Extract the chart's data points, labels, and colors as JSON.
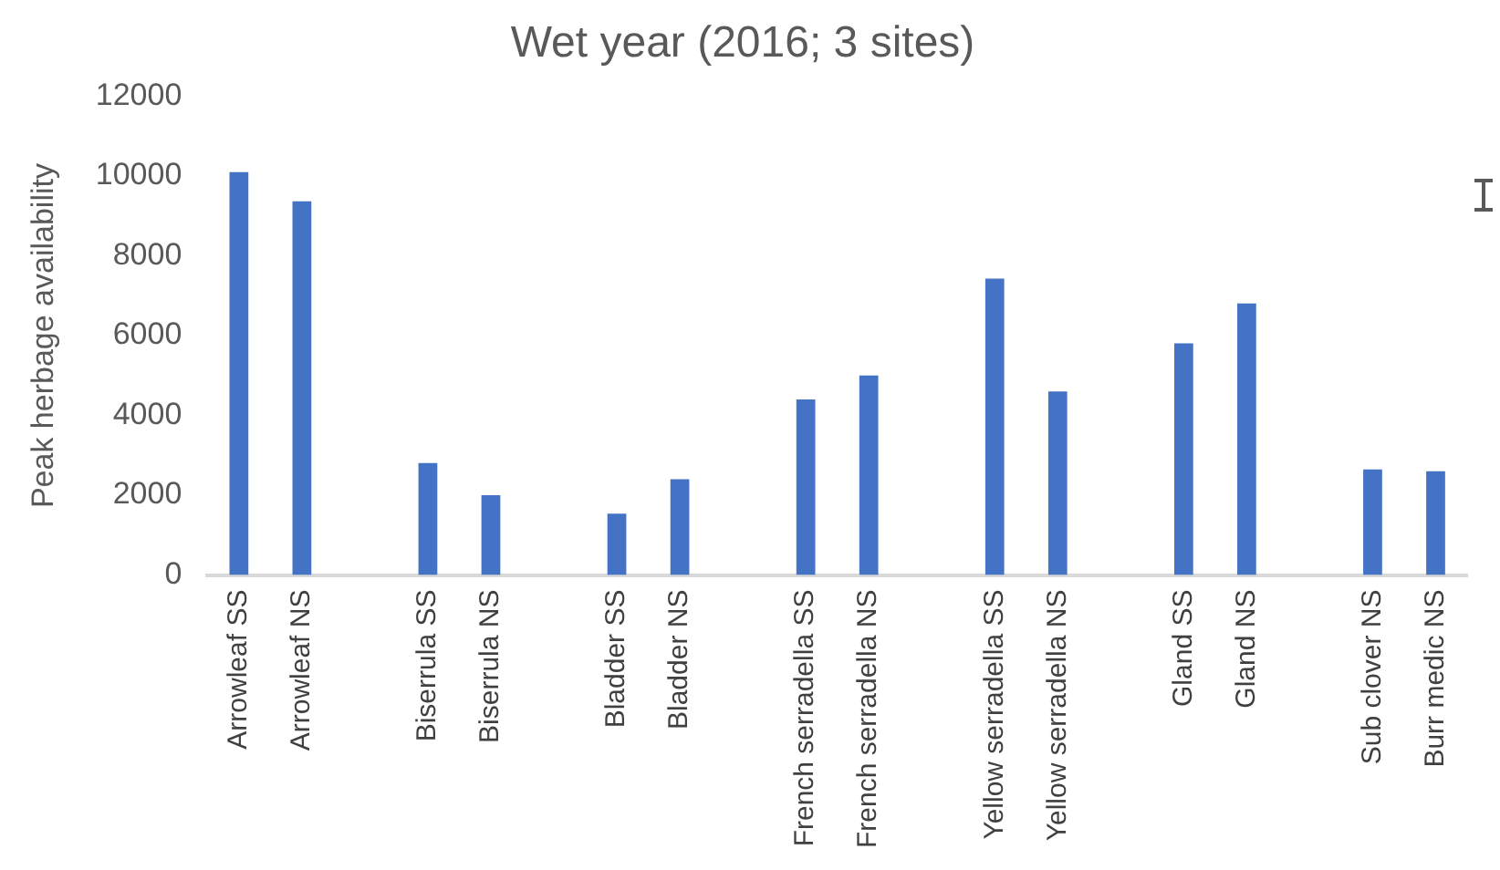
{
  "chart_data": {
    "type": "bar",
    "title": "Wet year (2016; 3 sites)",
    "ylabel": "Peak herbage availability",
    "categories": [
      "Arrowleaf SS",
      "Arrowleaf NS",
      null,
      "Biserrula SS",
      "Biserrula NS",
      null,
      "Bladder SS",
      "Bladder NS",
      null,
      "French serradella SS",
      "French serradella NS",
      null,
      "Yellow serradella SS",
      "Yellow serradella NS",
      null,
      "Gland SS",
      "Gland NS",
      null,
      "Sub clover NS",
      "Burr medic NS"
    ],
    "values": [
      10100,
      9370,
      null,
      2810,
      2000,
      null,
      1540,
      2400,
      null,
      4400,
      5000,
      null,
      7430,
      4600,
      null,
      5810,
      6810,
      null,
      2650,
      2600
    ],
    "color": "#4472c4",
    "ylim": [
      0,
      12000
    ],
    "yticks": [
      0,
      2000,
      4000,
      6000,
      8000,
      10000,
      12000
    ],
    "grid": false,
    "legend": false
  }
}
